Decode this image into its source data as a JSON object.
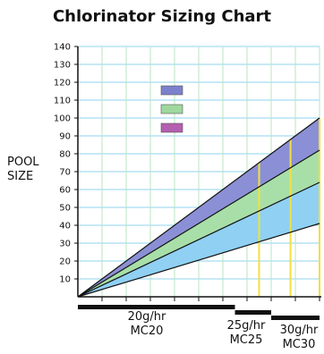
{
  "title": "Chlorinator Sizing Chart",
  "ylabel_lines": [
    "POOL",
    "SIZE"
  ],
  "chart_data": {
    "type": "area",
    "title": "Chlorinator Sizing Chart",
    "ylabel": "POOL SIZE",
    "ylim": [
      0,
      140
    ],
    "yticks": [
      10,
      20,
      30,
      40,
      50,
      60,
      70,
      80,
      90,
      100,
      110,
      120,
      130,
      140
    ],
    "grid": true,
    "x_tick_count": 10,
    "bands": [
      {
        "color": "#8b90d6",
        "lower_end": 82,
        "upper_end": 100
      },
      {
        "color": "#a8dfa8",
        "lower_end": 64,
        "upper_end": 82
      },
      {
        "color": "#8fd0f3",
        "lower_end": 41,
        "upper_end": 64
      }
    ],
    "legend_swatches": [
      "#7d80cc",
      "#9ed89e",
      "#b45fb0"
    ],
    "highlight_lines": [
      {
        "x_index": 7.5,
        "color": "#f2e040"
      },
      {
        "x_index": 8.8,
        "color": "#f2e040"
      },
      {
        "x_index": 10,
        "color": "#f2e040"
      }
    ],
    "ranges": [
      {
        "rate": "20g/hr",
        "model": "MC20",
        "from": 0,
        "to": 6.5
      },
      {
        "rate": "25g/hr",
        "model": "MC25",
        "from": 6.5,
        "to": 8.0
      },
      {
        "rate": "30g/hr",
        "model": "MC30",
        "from": 8.0,
        "to": 10.0
      }
    ]
  }
}
